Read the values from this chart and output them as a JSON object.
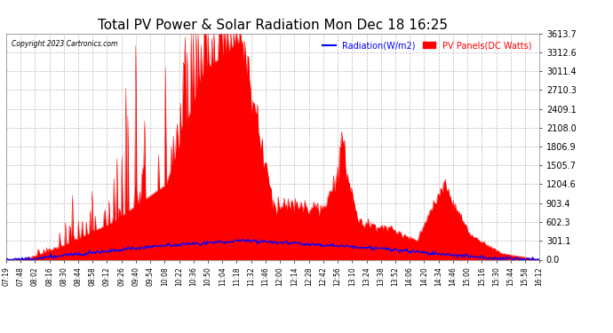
{
  "title": "Total PV Power & Solar Radiation Mon Dec 18 16:25",
  "copyright": "Copyright 2023 Cartronics.com",
  "legend_radiation": "Radiation(W/m2)",
  "legend_pv": "PV Panels(DC Watts)",
  "y_ticks": [
    0.0,
    301.1,
    602.3,
    903.4,
    1204.6,
    1505.7,
    1806.9,
    2108.0,
    2409.1,
    2710.3,
    3011.4,
    3312.6,
    3613.7
  ],
  "y_max": 3613.7,
  "y_min": 0.0,
  "radiation_color": "#0000ff",
  "pv_color": "#ff0000",
  "background_color": "#ffffff",
  "grid_color": "#aaaaaa",
  "title_fontsize": 11,
  "x_labels": [
    "07:19",
    "07:48",
    "08:02",
    "08:16",
    "08:30",
    "08:44",
    "08:58",
    "09:12",
    "09:26",
    "09:40",
    "09:54",
    "10:08",
    "10:22",
    "10:36",
    "10:50",
    "11:04",
    "11:18",
    "11:32",
    "11:46",
    "12:00",
    "12:14",
    "12:28",
    "12:42",
    "12:56",
    "13:10",
    "13:24",
    "13:38",
    "13:52",
    "14:06",
    "14:20",
    "14:34",
    "14:46",
    "15:00",
    "15:16",
    "15:30",
    "15:44",
    "15:58",
    "16:12"
  ]
}
